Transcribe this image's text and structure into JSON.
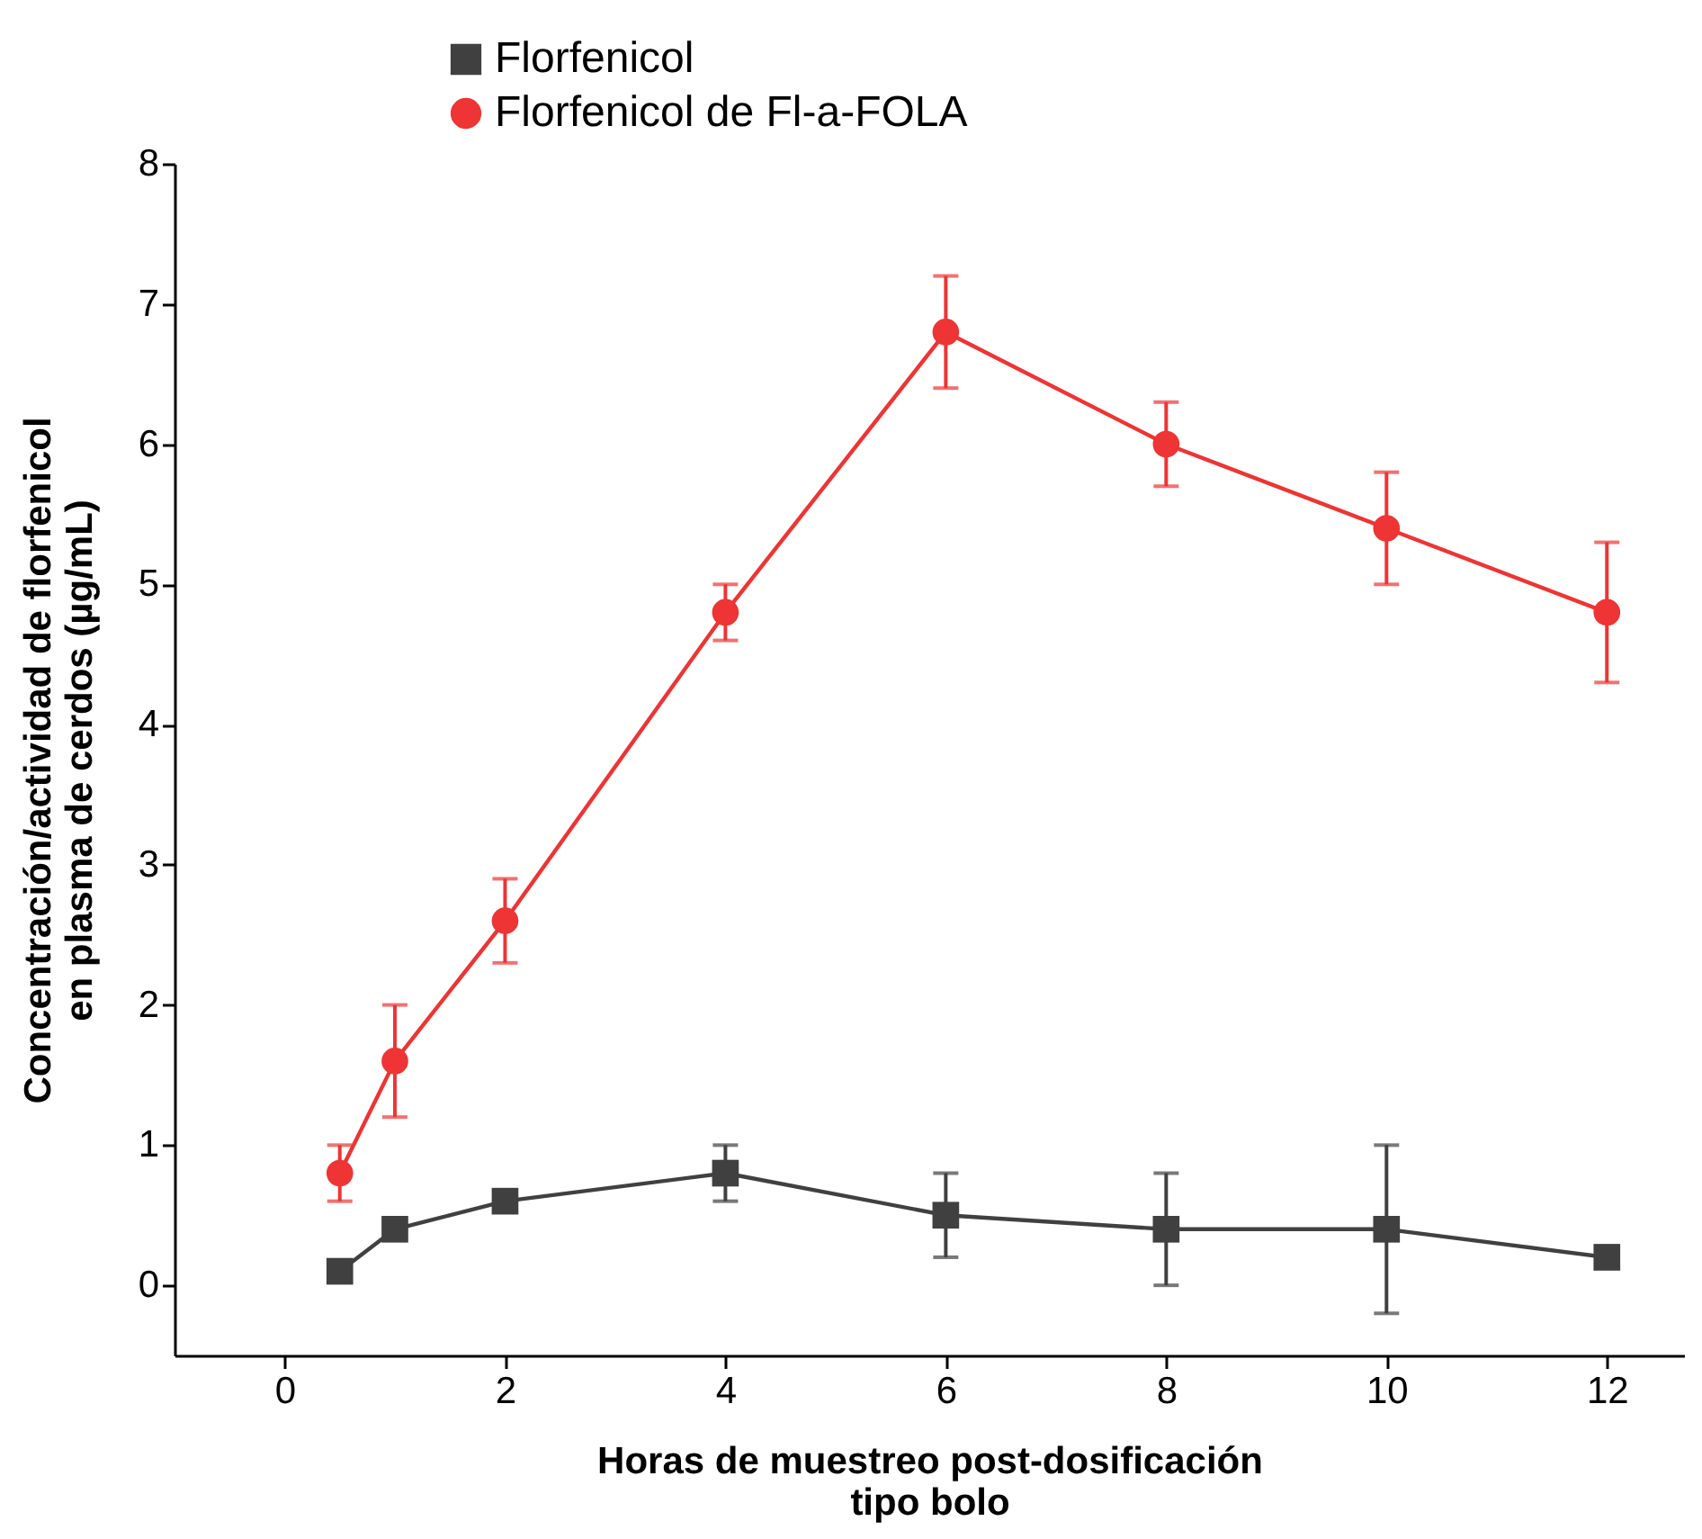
{
  "chart_data": {
    "type": "line",
    "xlabel": "Horas de muestreo post-dosificación\ntipo bolo",
    "ylabel": "Concentración/actividad de florfenicol\nen plasma de cerdos (µg/mL)",
    "x": [
      0.5,
      1,
      2,
      4,
      6,
      8,
      10,
      12
    ],
    "series": [
      {
        "name": "Florfenicol",
        "color": "#404040",
        "marker": "square",
        "values": [
          0.1,
          0.4,
          0.6,
          0.8,
          0.5,
          0.4,
          0.4,
          0.2
        ],
        "errors": [
          null,
          null,
          null,
          0.2,
          0.3,
          0.4,
          0.6,
          null
        ]
      },
      {
        "name": "Florfenicol de Fl-a-FOLA",
        "color": "#ee3434",
        "marker": "circle",
        "values": [
          0.8,
          1.6,
          2.6,
          4.8,
          6.8,
          6.0,
          5.4,
          4.8
        ],
        "errors": [
          0.2,
          0.4,
          0.3,
          0.2,
          0.4,
          0.3,
          0.4,
          0.5
        ]
      }
    ],
    "xlim": [
      -1,
      12.7
    ],
    "xticks": [
      0,
      2,
      4,
      6,
      8,
      10,
      12
    ],
    "ylim": [
      -0.5,
      8
    ],
    "yticks": [
      0,
      1,
      2,
      3,
      4,
      5,
      6,
      7,
      8
    ],
    "legend": "top left",
    "grid": false
  }
}
